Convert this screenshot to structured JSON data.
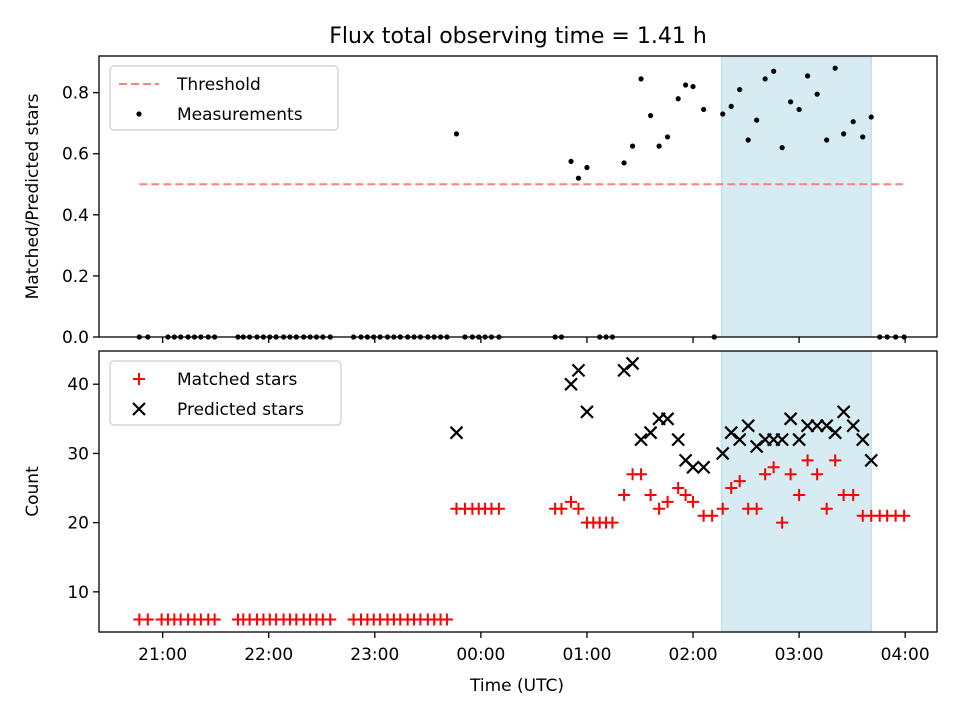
{
  "figure": {
    "title": "Flux total observing time = 1.41 h"
  },
  "chart_data": [
    {
      "type": "scatter",
      "panel": "top",
      "ylabel": "Matched/Predicted stars",
      "xlim": [
        -3.6,
        4.3
      ],
      "ylim": [
        0.0,
        0.92
      ],
      "yticks": [
        0.0,
        0.2,
        0.4,
        0.6,
        0.8
      ],
      "ytick_labels": [
        "0.0",
        "0.2",
        "0.4",
        "0.6",
        "0.8"
      ],
      "shaded_span": [
        2.27,
        3.68
      ],
      "shaded_color": "#add8e6",
      "grid": false,
      "legend": {
        "placement": "top-left",
        "entries": [
          "Threshold",
          "Measurements"
        ]
      },
      "series": [
        {
          "name": "Threshold",
          "style": "dashed-line",
          "color": "#ff8080",
          "points": [
            [
              -3.22,
              0.5
            ],
            [
              3.98,
              0.5
            ]
          ]
        },
        {
          "name": "Measurements",
          "style": "dot",
          "color": "#000000",
          "points": [
            [
              -3.22,
              0
            ],
            [
              -3.14,
              0
            ],
            [
              -2.95,
              0
            ],
            [
              -2.89,
              0
            ],
            [
              -2.83,
              0
            ],
            [
              -2.76,
              0
            ],
            [
              -2.7,
              0
            ],
            [
              -2.64,
              0
            ],
            [
              -2.57,
              0
            ],
            [
              -2.51,
              0
            ],
            [
              -2.29,
              0
            ],
            [
              -2.24,
              0
            ],
            [
              -2.18,
              0
            ],
            [
              -2.11,
              0
            ],
            [
              -2.05,
              0
            ],
            [
              -1.99,
              0
            ],
            [
              -1.93,
              0
            ],
            [
              -1.86,
              0
            ],
            [
              -1.8,
              0
            ],
            [
              -1.74,
              0
            ],
            [
              -1.67,
              0
            ],
            [
              -1.61,
              0
            ],
            [
              -1.55,
              0
            ],
            [
              -1.49,
              0
            ],
            [
              -1.42,
              0
            ],
            [
              -1.2,
              0
            ],
            [
              -1.13,
              0
            ],
            [
              -1.07,
              0
            ],
            [
              -1.01,
              0
            ],
            [
              -0.95,
              0
            ],
            [
              -0.88,
              0
            ],
            [
              -0.82,
              0
            ],
            [
              -0.76,
              0
            ],
            [
              -0.69,
              0
            ],
            [
              -0.63,
              0
            ],
            [
              -0.57,
              0
            ],
            [
              -0.5,
              0
            ],
            [
              -0.44,
              0
            ],
            [
              -0.38,
              0
            ],
            [
              -0.32,
              0
            ],
            [
              -0.23,
              0.665
            ],
            [
              -0.15,
              0
            ],
            [
              -0.08,
              0
            ],
            [
              -0.02,
              0
            ],
            [
              0.04,
              0
            ],
            [
              0.1,
              0
            ],
            [
              0.17,
              0
            ],
            [
              0.7,
              0
            ],
            [
              0.76,
              0
            ],
            [
              0.85,
              0.575
            ],
            [
              0.92,
              0.52
            ],
            [
              1.0,
              0.555
            ],
            [
              1.12,
              0
            ],
            [
              1.18,
              0
            ],
            [
              1.24,
              0
            ],
            [
              1.35,
              0.57
            ],
            [
              1.43,
              0.625
            ],
            [
              1.51,
              0.845
            ],
            [
              1.6,
              0.725
            ],
            [
              1.68,
              0.625
            ],
            [
              1.76,
              0.655
            ],
            [
              1.86,
              0.78
            ],
            [
              1.93,
              0.825
            ],
            [
              2.0,
              0.82
            ],
            [
              2.1,
              0.745
            ],
            [
              2.2,
              0
            ],
            [
              2.28,
              0.73
            ],
            [
              2.36,
              0.755
            ],
            [
              2.44,
              0.81
            ],
            [
              2.52,
              0.645
            ],
            [
              2.6,
              0.71
            ],
            [
              2.68,
              0.845
            ],
            [
              2.76,
              0.87
            ],
            [
              2.84,
              0.62
            ],
            [
              2.92,
              0.77
            ],
            [
              3.0,
              0.745
            ],
            [
              3.08,
              0.855
            ],
            [
              3.17,
              0.795
            ],
            [
              3.26,
              0.645
            ],
            [
              3.34,
              0.88
            ],
            [
              3.42,
              0.665
            ],
            [
              3.51,
              0.705
            ],
            [
              3.6,
              0.655
            ],
            [
              3.68,
              0.72
            ],
            [
              3.76,
              0
            ],
            [
              3.83,
              0
            ],
            [
              3.91,
              0
            ],
            [
              3.99,
              0
            ]
          ]
        }
      ]
    },
    {
      "type": "scatter",
      "panel": "bottom",
      "ylabel": "Count",
      "xlabel": "Time (UTC)",
      "xlim": [
        -3.6,
        4.3
      ],
      "ylim": [
        4.2,
        44.8
      ],
      "yticks": [
        10,
        20,
        30,
        40
      ],
      "ytick_labels": [
        "10",
        "20",
        "30",
        "40"
      ],
      "xticks": [
        -3,
        -2,
        -1,
        0,
        1,
        2,
        3,
        4
      ],
      "xtick_labels": [
        "21:00",
        "22:00",
        "23:00",
        "00:00",
        "01:00",
        "02:00",
        "03:00",
        "04:00"
      ],
      "shaded_span": [
        2.27,
        3.68
      ],
      "shaded_color": "#add8e6",
      "grid": false,
      "legend": {
        "placement": "top-left",
        "entries": [
          "Matched stars",
          "Predicted stars"
        ]
      },
      "series": [
        {
          "name": "Matched stars",
          "style": "plus",
          "color": "#ff0000",
          "points": [
            [
              -3.22,
              6
            ],
            [
              -3.14,
              6
            ],
            [
              -3.01,
              6
            ],
            [
              -2.95,
              6
            ],
            [
              -2.89,
              6
            ],
            [
              -2.83,
              6
            ],
            [
              -2.76,
              6
            ],
            [
              -2.7,
              6
            ],
            [
              -2.64,
              6
            ],
            [
              -2.57,
              6
            ],
            [
              -2.51,
              6
            ],
            [
              -2.29,
              6
            ],
            [
              -2.24,
              6
            ],
            [
              -2.18,
              6
            ],
            [
              -2.11,
              6
            ],
            [
              -2.05,
              6
            ],
            [
              -1.99,
              6
            ],
            [
              -1.93,
              6
            ],
            [
              -1.86,
              6
            ],
            [
              -1.8,
              6
            ],
            [
              -1.74,
              6
            ],
            [
              -1.67,
              6
            ],
            [
              -1.61,
              6
            ],
            [
              -1.55,
              6
            ],
            [
              -1.49,
              6
            ],
            [
              -1.42,
              6
            ],
            [
              -1.2,
              6
            ],
            [
              -1.13,
              6
            ],
            [
              -1.07,
              6
            ],
            [
              -1.01,
              6
            ],
            [
              -0.95,
              6
            ],
            [
              -0.88,
              6
            ],
            [
              -0.82,
              6
            ],
            [
              -0.76,
              6
            ],
            [
              -0.69,
              6
            ],
            [
              -0.63,
              6
            ],
            [
              -0.57,
              6
            ],
            [
              -0.5,
              6
            ],
            [
              -0.44,
              6
            ],
            [
              -0.38,
              6
            ],
            [
              -0.32,
              6
            ],
            [
              -0.23,
              22
            ],
            [
              -0.15,
              22
            ],
            [
              -0.08,
              22
            ],
            [
              -0.02,
              22
            ],
            [
              0.04,
              22
            ],
            [
              0.1,
              22
            ],
            [
              0.17,
              22
            ],
            [
              0.7,
              22
            ],
            [
              0.76,
              22
            ],
            [
              0.85,
              23
            ],
            [
              0.92,
              22
            ],
            [
              1.0,
              20
            ],
            [
              1.06,
              20
            ],
            [
              1.12,
              20
            ],
            [
              1.18,
              20
            ],
            [
              1.24,
              20
            ],
            [
              1.35,
              24
            ],
            [
              1.43,
              27
            ],
            [
              1.51,
              27
            ],
            [
              1.6,
              24
            ],
            [
              1.68,
              22
            ],
            [
              1.76,
              23
            ],
            [
              1.86,
              25
            ],
            [
              1.93,
              24
            ],
            [
              2.0,
              23
            ],
            [
              2.1,
              21
            ],
            [
              2.18,
              21
            ],
            [
              2.28,
              22
            ],
            [
              2.36,
              25
            ],
            [
              2.44,
              26
            ],
            [
              2.52,
              22
            ],
            [
              2.6,
              22
            ],
            [
              2.68,
              27
            ],
            [
              2.76,
              28
            ],
            [
              2.84,
              20
            ],
            [
              2.92,
              27
            ],
            [
              3.0,
              24
            ],
            [
              3.08,
              29
            ],
            [
              3.17,
              27
            ],
            [
              3.26,
              22
            ],
            [
              3.34,
              29
            ],
            [
              3.42,
              24
            ],
            [
              3.51,
              24
            ],
            [
              3.6,
              21
            ],
            [
              3.68,
              21
            ],
            [
              3.76,
              21
            ],
            [
              3.83,
              21
            ],
            [
              3.91,
              21
            ],
            [
              3.99,
              21
            ]
          ]
        },
        {
          "name": "Predicted stars",
          "style": "x",
          "color": "#000000",
          "points": [
            [
              -0.23,
              33
            ],
            [
              0.85,
              40
            ],
            [
              0.92,
              42
            ],
            [
              1.0,
              36
            ],
            [
              1.35,
              42
            ],
            [
              1.43,
              43
            ],
            [
              1.51,
              32
            ],
            [
              1.6,
              33
            ],
            [
              1.68,
              35
            ],
            [
              1.76,
              35
            ],
            [
              1.86,
              32
            ],
            [
              1.93,
              29
            ],
            [
              2.0,
              28
            ],
            [
              2.1,
              28
            ],
            [
              2.28,
              30
            ],
            [
              2.36,
              33
            ],
            [
              2.44,
              32
            ],
            [
              2.52,
              34
            ],
            [
              2.6,
              31
            ],
            [
              2.68,
              32
            ],
            [
              2.76,
              32
            ],
            [
              2.84,
              32
            ],
            [
              2.92,
              35
            ],
            [
              3.0,
              32
            ],
            [
              3.08,
              34
            ],
            [
              3.17,
              34
            ],
            [
              3.26,
              34
            ],
            [
              3.34,
              33
            ],
            [
              3.42,
              36
            ],
            [
              3.51,
              34
            ],
            [
              3.6,
              32
            ],
            [
              3.68,
              29
            ]
          ]
        }
      ]
    }
  ]
}
